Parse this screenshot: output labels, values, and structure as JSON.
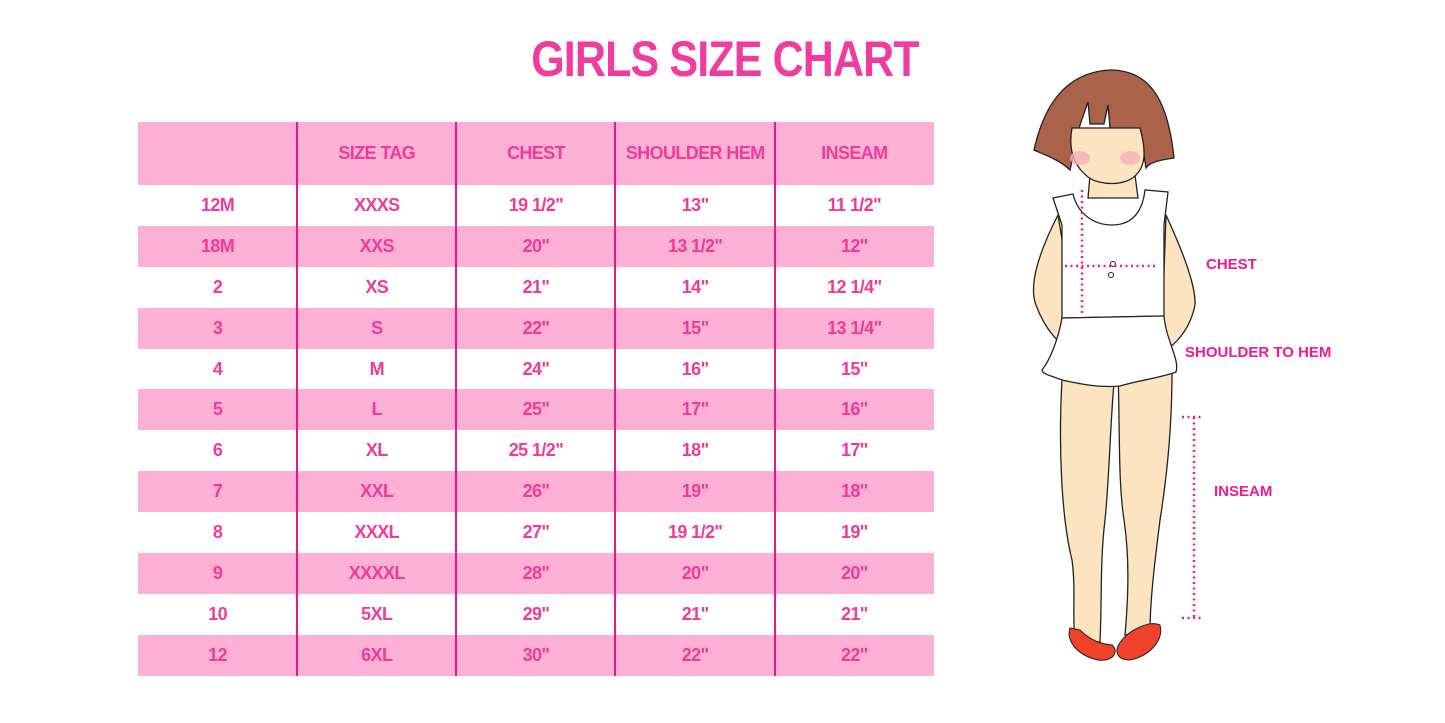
{
  "title": "GIRLS SIZE CHART",
  "table": {
    "headers": [
      "",
      "SIZE TAG",
      "CHEST",
      "SHOULDER HEM",
      "INSEAM"
    ],
    "rows": [
      [
        "12M",
        "XXXS",
        "19 1/2\"",
        "13\"",
        "11 1/2\""
      ],
      [
        "18M",
        "XXS",
        "20\"",
        "13 1/2\"",
        "12\""
      ],
      [
        "2",
        "XS",
        "21\"",
        "14\"",
        "12 1/4\""
      ],
      [
        "3",
        "S",
        "22\"",
        "15\"",
        "13 1/4\""
      ],
      [
        "4",
        "M",
        "24\"",
        "16\"",
        "15\""
      ],
      [
        "5",
        "L",
        "25\"",
        "17\"",
        "16\""
      ],
      [
        "6",
        "XL",
        "25 1/2\"",
        "18\"",
        "17\""
      ],
      [
        "7",
        "XXL",
        "26\"",
        "19\"",
        "18\""
      ],
      [
        "8",
        "XXXL",
        "27\"",
        "19 1/2\"",
        "19\""
      ],
      [
        "9",
        "XXXXL",
        "28\"",
        "20\"",
        "20\""
      ],
      [
        "10",
        "5XL",
        "29\"",
        "21\"",
        "21\""
      ],
      [
        "12",
        "6XL",
        "30\"",
        "22\"",
        "22\""
      ]
    ]
  },
  "illustration": {
    "labels": {
      "chest": "CHEST",
      "shoulder_to_hem": "SHOULDER TO HEM",
      "inseam": "INSEAM"
    }
  },
  "colors": {
    "accent": "#ef3a98",
    "stripe": "#fdb0d6",
    "divider": "#e8168a"
  }
}
